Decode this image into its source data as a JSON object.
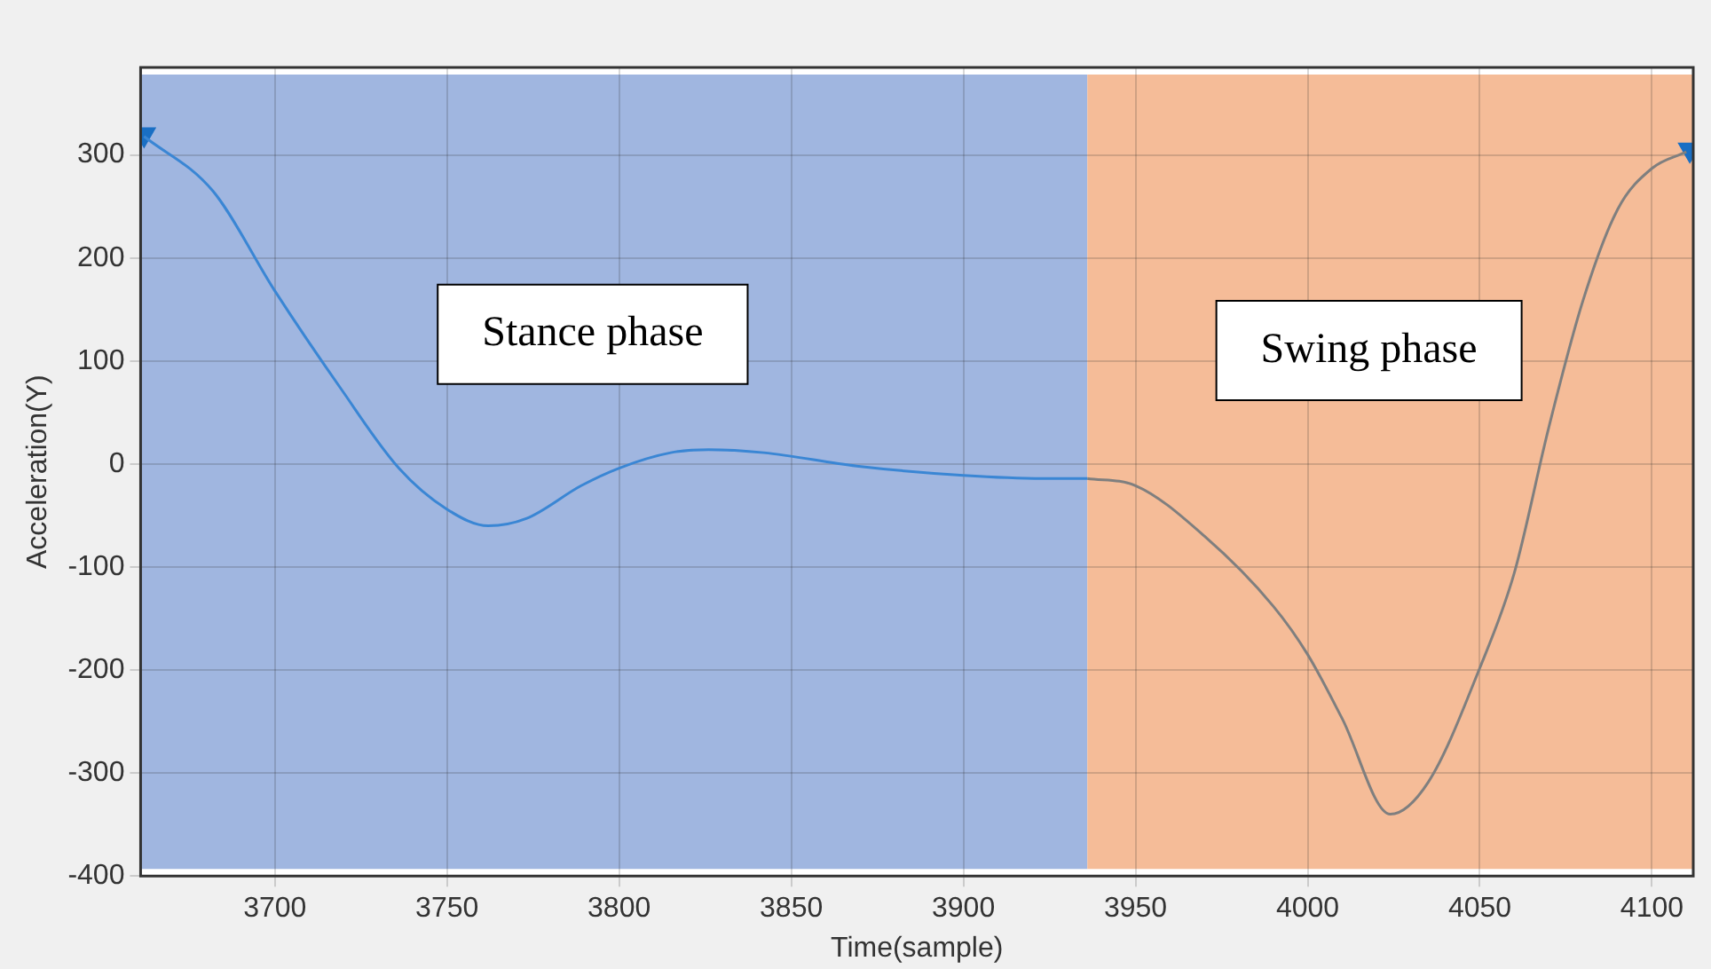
{
  "chart_data": {
    "type": "line",
    "xlabel": "Time(sample)",
    "ylabel": "Acceleration(Y)",
    "xlim": [
      3661,
      4112
    ],
    "ylim": [
      -400,
      385
    ],
    "xticks": [
      3700,
      3750,
      3800,
      3850,
      3900,
      3950,
      4000,
      4050,
      4100
    ],
    "yticks": [
      -400,
      -300,
      -200,
      -100,
      0,
      100,
      200,
      300
    ],
    "grid": true,
    "legend": false,
    "bands": [
      {
        "axis": "x",
        "from": 3661,
        "to": 3936,
        "color": "#a0b6e0",
        "label": "Stance phase"
      },
      {
        "axis": "x",
        "from": 3936,
        "to": 4112,
        "color": "#f5bc98",
        "label": "Swing phase"
      }
    ],
    "series": [
      {
        "type": "line",
        "color": "#3a86d4",
        "marker": "none",
        "x": [
          3662,
          3682,
          3700,
          3719,
          3736,
          3750,
          3762,
          3773,
          3789,
          3800,
          3815,
          3826,
          3842,
          3869,
          3900,
          3923,
          3936
        ],
        "values": [
          318,
          265,
          168,
          74,
          -4,
          -44,
          -60,
          -53,
          -21,
          -4,
          11,
          14,
          11,
          -2,
          -11,
          -14,
          -14
        ]
      },
      {
        "type": "line",
        "color": "#7f7f7f",
        "marker": "none",
        "x": [
          3936,
          3950,
          3970,
          3990,
          4000,
          4010,
          4024,
          4035,
          4050,
          4060,
          4070,
          4080,
          4090,
          4100,
          4110
        ],
        "values": [
          -14,
          -21,
          -70,
          -138,
          -185,
          -247,
          -340,
          -309,
          -198,
          -106,
          35,
          159,
          247,
          287,
          303
        ]
      },
      {
        "type": "scatter",
        "color": "#1a6fc4",
        "marker": "triangle",
        "x": [
          3662,
          4111
        ],
        "values": [
          320,
          305
        ]
      }
    ]
  }
}
